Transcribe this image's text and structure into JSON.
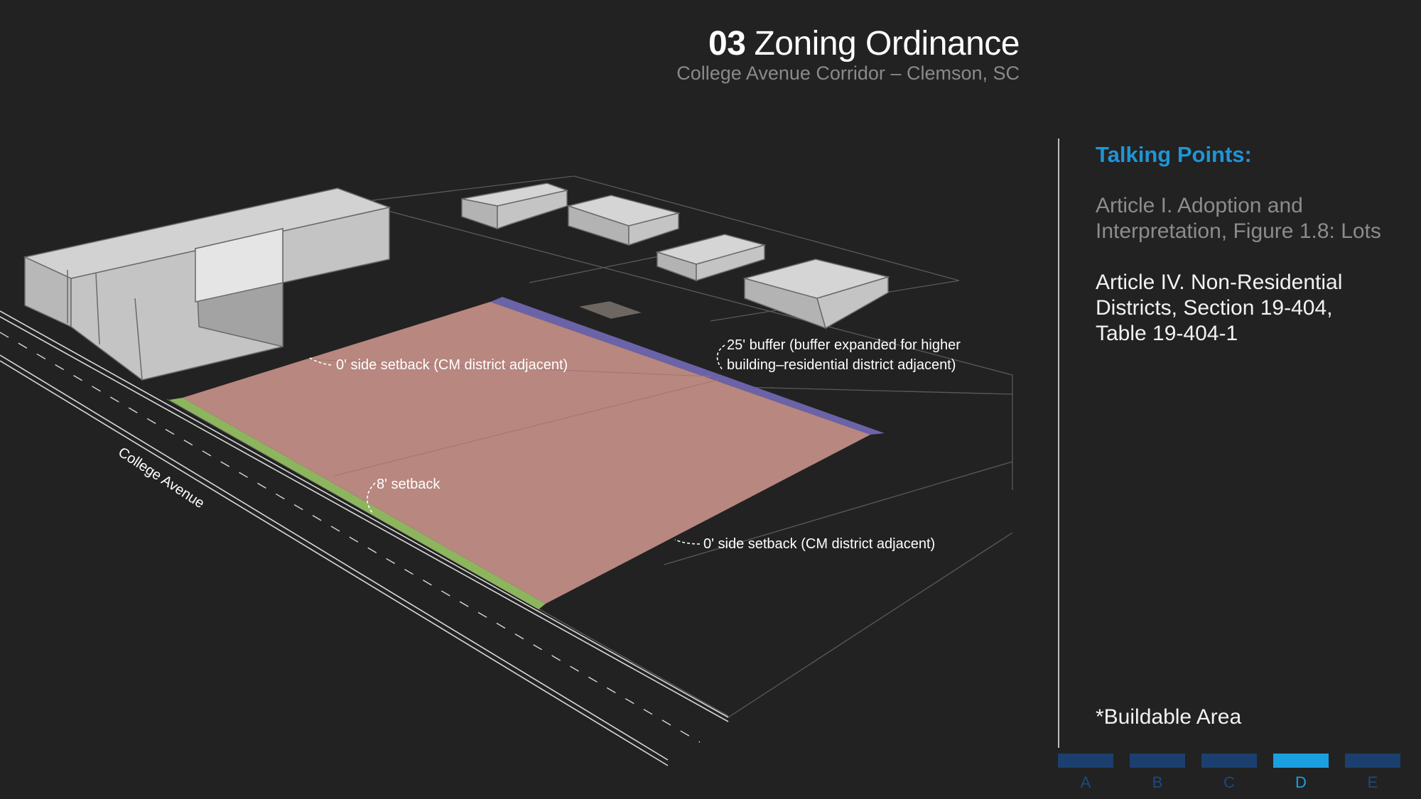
{
  "header": {
    "number": "03",
    "title": "Zoning Ordinance",
    "subtitle": "College Avenue Corridor – Clemson, SC"
  },
  "sidebar": {
    "heading": "Talking Points:",
    "ref1_line1": "Article I. Adoption and",
    "ref1_line2": "Interpretation, Figure 1.8: Lots",
    "ref2_line1": "Article IV. Non-Residential",
    "ref2_line2": "Districts, Section 19-404,",
    "ref2_line3": "Table 19-404-1",
    "footnote": "*Buildable Area"
  },
  "diagram": {
    "street_name": "College Avenue",
    "labels": {
      "side_setback_top": "0' side setback (CM district adjacent)",
      "buffer_line1": "25' buffer (buffer expanded for higher",
      "buffer_line2": "building–residential district adjacent)",
      "front_setback": "8' setback",
      "side_setback_bottom": "0' side setback (CM district adjacent)"
    },
    "colors": {
      "buildable_area": "#b8877f",
      "front_setback": "#8db55e",
      "buffer": "#6b63a8",
      "buildings": "#c9c9c9"
    }
  },
  "nav": {
    "items": [
      {
        "label": "A",
        "active": false
      },
      {
        "label": "B",
        "active": false
      },
      {
        "label": "C",
        "active": false
      },
      {
        "label": "D",
        "active": true
      },
      {
        "label": "E",
        "active": false
      }
    ]
  }
}
